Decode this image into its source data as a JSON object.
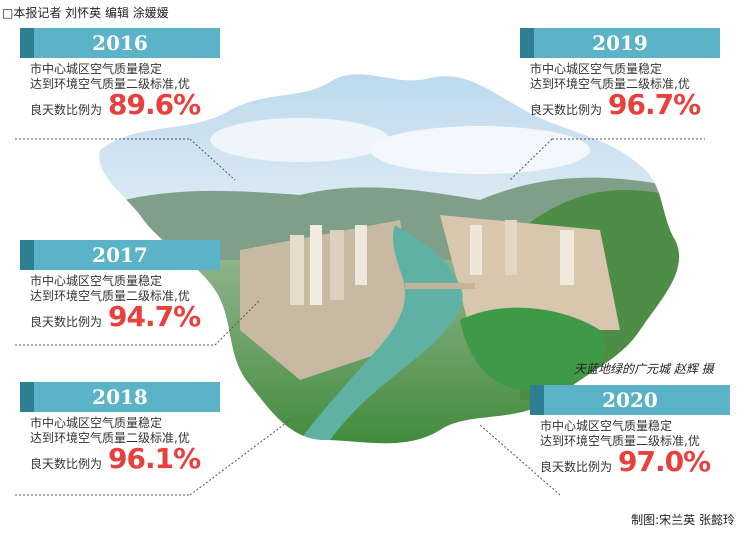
{
  "byline": "□本报记者  刘怀英  编辑  涂媛媛",
  "credit": "制图:宋兰英  张懿玲",
  "photo_caption": "天蓝地绿的广元城  赵辉  摄",
  "desc_line1": "市中心城区空气质量稳定",
  "desc_line2": "达到环境空气质量二级标准,优",
  "desc_line3": "良天数比例为",
  "stats": [
    {
      "year": "2016",
      "value": "89.6%"
    },
    {
      "year": "2017",
      "value": "94.7%"
    },
    {
      "year": "2018",
      "value": "96.1%"
    },
    {
      "year": "2019",
      "value": "96.7%"
    },
    {
      "year": "2020",
      "value": "97.0%"
    }
  ],
  "colors": {
    "year_bar": "#5ab3c7",
    "year_bar_dark": "#2f7f94",
    "percent": "#e8403d"
  }
}
